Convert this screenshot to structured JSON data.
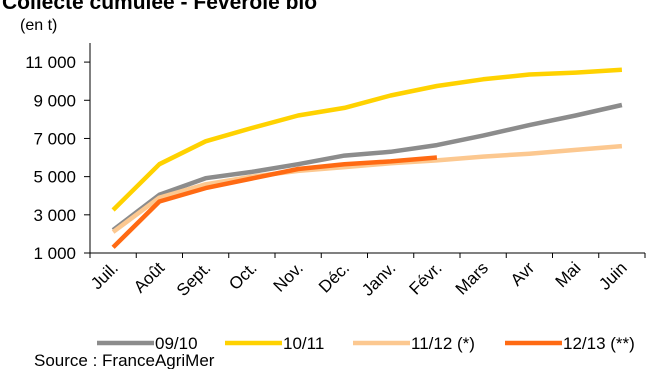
{
  "chart_data": {
    "type": "line",
    "title": "Collecte cumulée - Féverole bio",
    "unit_label": "(en t)",
    "categories": [
      "Juil.",
      "Août",
      "Sept.",
      "Oct.",
      "Nov.",
      "Déc.",
      "Janv.",
      "Févr.",
      "Mars",
      "Avr",
      "Mai",
      "Juin"
    ],
    "y_ticks": [
      1000,
      3000,
      5000,
      7000,
      9000,
      11000
    ],
    "y_tick_labels": [
      "1 000",
      "3 000",
      "5 000",
      "7 000",
      "9 000",
      "11 000"
    ],
    "ylim": [
      1000,
      12000
    ],
    "grid": false,
    "legend_position": "bottom",
    "series": [
      {
        "name": "09/10",
        "color": "#8c8c8c",
        "values": [
          2200,
          4050,
          4920,
          5250,
          5650,
          6100,
          6300,
          6650,
          7150,
          7700,
          8200,
          8750
        ]
      },
      {
        "name": "10/11",
        "color": "#ffd200",
        "values": [
          3250,
          5650,
          6850,
          7550,
          8200,
          8600,
          9250,
          9750,
          10100,
          10350,
          10450,
          10600
        ]
      },
      {
        "name": "11/12 (*)",
        "color": "#fcc890",
        "values": [
          2100,
          3900,
          4600,
          5000,
          5300,
          5500,
          5700,
          5850,
          6050,
          6200,
          6400,
          6600
        ]
      },
      {
        "name": "12/13 (**)",
        "color": "#ff6a13",
        "values": [
          1300,
          3700,
          4400,
          4900,
          5400,
          5650,
          5800,
          6000,
          null,
          null,
          null,
          null
        ]
      }
    ],
    "source": "Source : FranceAgriMer"
  }
}
